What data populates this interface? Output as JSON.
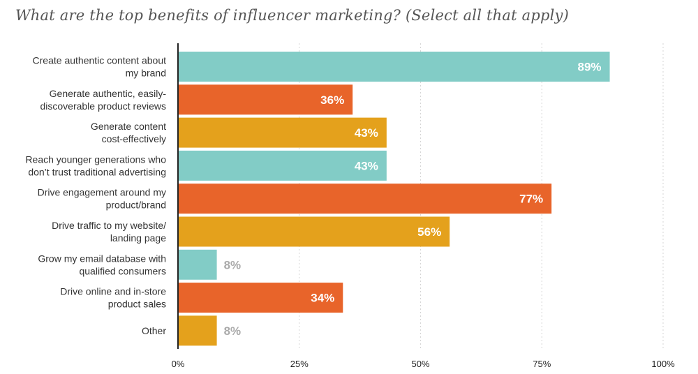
{
  "chart_data": {
    "type": "bar",
    "orientation": "horizontal",
    "title": "What are the top benefits of influencer marketing? (Select all that apply)",
    "categories": [
      [
        "Create authentic content about",
        "my brand"
      ],
      [
        "Generate authentic, easily-",
        "discoverable product reviews"
      ],
      [
        "Generate content",
        "cost-effectively"
      ],
      [
        "Reach younger generations who",
        "don’t trust traditional advertising"
      ],
      [
        "Drive engagement around my",
        "product/brand"
      ],
      [
        "Drive traffic to my website/",
        "landing page"
      ],
      [
        "Grow my email database with",
        "qualified consumers"
      ],
      [
        "Drive online and in-store",
        "product sales"
      ],
      [
        "Other"
      ]
    ],
    "values": [
      89,
      36,
      43,
      43,
      77,
      56,
      8,
      34,
      8
    ],
    "value_labels": [
      "89%",
      "36%",
      "43%",
      "43%",
      "77%",
      "56%",
      "8%",
      "34%",
      "8%"
    ],
    "bar_colors": [
      "#82ccc6",
      "#e8642a",
      "#e4a11c",
      "#82ccc6",
      "#e8642a",
      "#e4a11c",
      "#82ccc6",
      "#e8642a",
      "#e4a11c"
    ],
    "label_inside_color": "#ffffff",
    "label_outside_color": "#aaaaaa",
    "xlim": [
      0,
      100
    ],
    "ticks": [
      0,
      25,
      50,
      75,
      100
    ],
    "tick_labels": [
      "0%",
      "25%",
      "50%",
      "75%",
      "100%"
    ],
    "grid": true,
    "grid_color": "#d6d6d6",
    "axis_color": "#222222"
  }
}
